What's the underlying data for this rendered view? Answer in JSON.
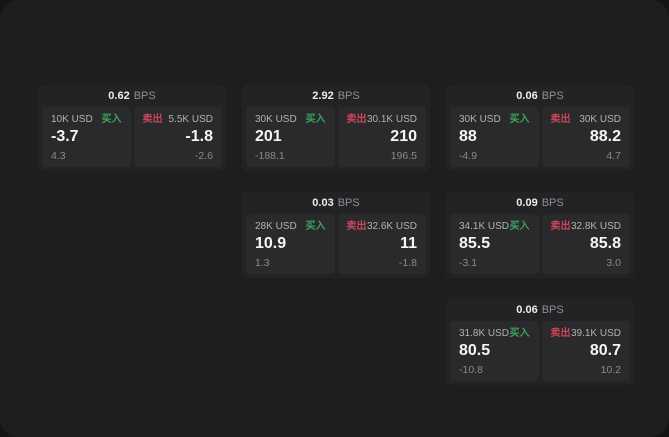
{
  "labels": {
    "bps_unit": "BPS",
    "buy": "买入",
    "sell": "卖出"
  },
  "colors": {
    "buy_accent": "#3da35c",
    "sell_accent": "#c9455a"
  },
  "cards": [
    {
      "row": 1,
      "col": 1,
      "bps": "0.62",
      "buy": {
        "amount": "10K USD",
        "value": "-3.7",
        "delta": "4.3"
      },
      "sell": {
        "amount": "5.5K USD",
        "value": "-1.8",
        "delta": "-2.6"
      }
    },
    {
      "row": 1,
      "col": 2,
      "bps": "2.92",
      "buy": {
        "amount": "30K USD",
        "value": "201",
        "delta": "-188.1"
      },
      "sell": {
        "amount": "30.1K USD",
        "value": "210",
        "delta": "196.5"
      }
    },
    {
      "row": 1,
      "col": 3,
      "bps": "0.06",
      "buy": {
        "amount": "30K USD",
        "value": "88",
        "delta": "-4.9"
      },
      "sell": {
        "amount": "30K USD",
        "value": "88.2",
        "delta": "4.7"
      }
    },
    {
      "row": 2,
      "col": 2,
      "bps": "0.03",
      "buy": {
        "amount": "28K USD",
        "value": "10.9",
        "delta": "1.3"
      },
      "sell": {
        "amount": "32.6K USD",
        "value": "11",
        "delta": "-1.8"
      }
    },
    {
      "row": 2,
      "col": 3,
      "bps": "0.09",
      "buy": {
        "amount": "34.1K USD",
        "value": "85.5",
        "delta": "-3.1"
      },
      "sell": {
        "amount": "32.8K USD",
        "value": "85.8",
        "delta": "3.0"
      }
    },
    {
      "row": 3,
      "col": 3,
      "bps": "0.06",
      "buy": {
        "amount": "31.8K USD",
        "value": "80.5",
        "delta": "-10.8"
      },
      "sell": {
        "amount": "39.1K USD",
        "value": "80.7",
        "delta": "10.2"
      }
    }
  ]
}
